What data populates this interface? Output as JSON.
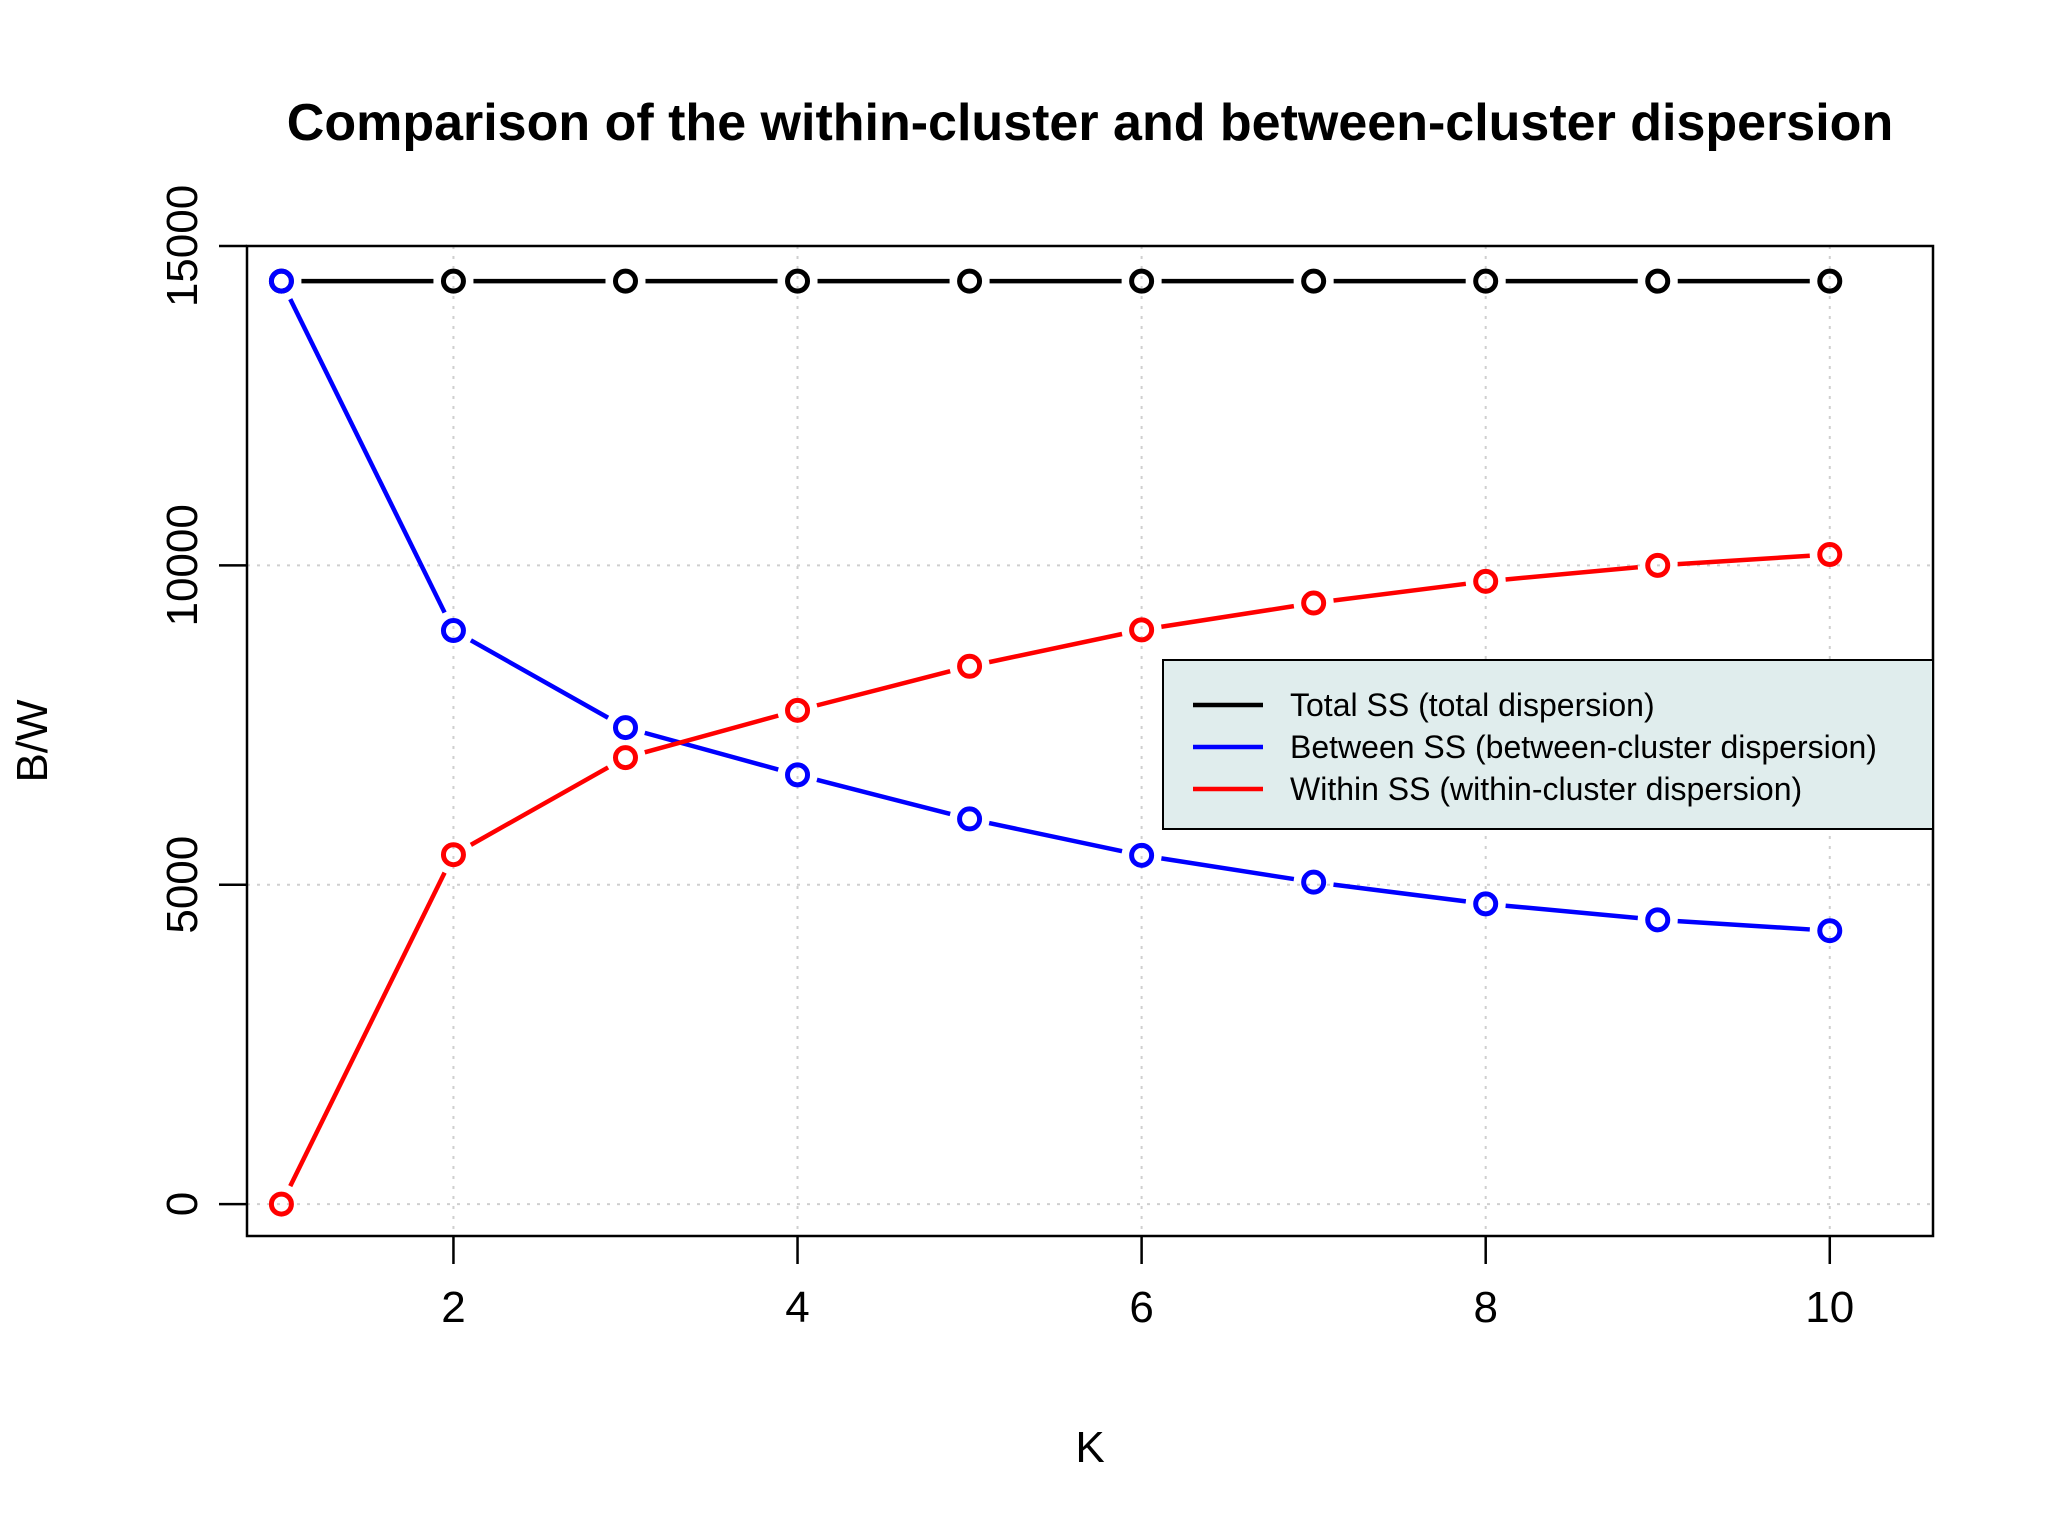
{
  "chart_data": {
    "type": "line",
    "title": "Comparison of the within-cluster and between-cluster dispersion",
    "xlabel": "K",
    "ylabel": "B/W",
    "x": [
      1,
      2,
      3,
      4,
      5,
      6,
      7,
      8,
      9,
      10
    ],
    "xticks": [
      2,
      4,
      6,
      8,
      10
    ],
    "yticks": [
      0,
      5000,
      10000,
      15000
    ],
    "xlim": [
      0.8,
      10.6
    ],
    "ylim": [
      -500,
      15000
    ],
    "grid": true,
    "legend_position": "right",
    "legend_background": "#e0eded",
    "series": [
      {
        "name": "Total SS (total dispersion)",
        "color": "#000000",
        "values": [
          14450,
          14450,
          14450,
          14450,
          14450,
          14450,
          14450,
          14450,
          14450,
          14450
        ]
      },
      {
        "name": "Between SS (between-cluster dispersion)",
        "color": "#0000ff",
        "values": [
          14450,
          8980,
          7460,
          6720,
          6030,
          5460,
          5040,
          4700,
          4450,
          4280
        ]
      },
      {
        "name": "Within SS (within-cluster dispersion)",
        "color": "#ff0000",
        "values": [
          0,
          5470,
          6990,
          7730,
          8420,
          8990,
          9410,
          9750,
          10000,
          10170
        ]
      }
    ]
  }
}
